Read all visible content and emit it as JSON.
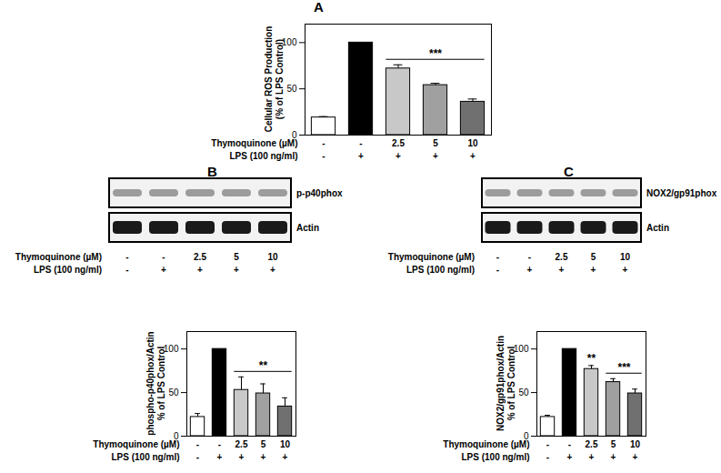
{
  "chart_data": [
    {
      "type": "bar",
      "panel": "A",
      "ylabel": "Cellular ROS Production\n(% of LPS Control)",
      "categories": [
        null,
        null,
        null,
        null,
        null
      ],
      "values": [
        19,
        100,
        72,
        54,
        36
      ],
      "errors": [
        1,
        0,
        4,
        2,
        3
      ],
      "colors": [
        "#ffffff",
        "#000000",
        "#c8c8c8",
        "#a0a0a0",
        "#707070"
      ],
      "ylim": [
        0,
        120
      ],
      "yticks": [
        0,
        50,
        100
      ],
      "tick_labels": "y",
      "treatments": [
        {
          "label": "Thymoquinone (µM)",
          "values": [
            "-",
            "-",
            "2.5",
            "5",
            "10"
          ]
        },
        {
          "label": "LPS (100 ng/ml)",
          "values": [
            "-",
            "+",
            "+",
            "+",
            "+"
          ]
        }
      ],
      "annotations": [
        {
          "text": "***",
          "from": 2,
          "to": 4
        }
      ]
    },
    {
      "type": "bar",
      "panel": "B",
      "blot": {
        "bands": [
          "p-p40phox",
          "Actin"
        ]
      },
      "ylabel": "phospho-p40phox/Actin\n% of LPS Control",
      "categories": [
        null,
        null,
        null,
        null,
        null
      ],
      "values": [
        22,
        100,
        53,
        49,
        34
      ],
      "errors": [
        4,
        0,
        15,
        11,
        10
      ],
      "colors": [
        "#ffffff",
        "#000000",
        "#c8c8c8",
        "#a0a0a0",
        "#707070"
      ],
      "ylim": [
        0,
        120
      ],
      "yticks": [
        0,
        50,
        100
      ],
      "tick_labels": "y",
      "treatments": [
        {
          "label": "Thymoquinone (µM)",
          "values": [
            "-",
            "-",
            "2.5",
            "5",
            "10"
          ]
        },
        {
          "label": "LPS (100 ng/ml)",
          "values": [
            "-",
            "+",
            "+",
            "+",
            "+"
          ]
        }
      ],
      "annotations": [
        {
          "text": "**",
          "from": 2,
          "to": 4
        }
      ]
    },
    {
      "type": "bar",
      "panel": "C",
      "blot": {
        "bands": [
          "NOX2/gp91phox",
          "Actin"
        ]
      },
      "ylabel": "NOX2/gp91phox/Actin\n% of LPS Control",
      "categories": [
        null,
        null,
        null,
        null,
        null
      ],
      "values": [
        22,
        100,
        77,
        62,
        49
      ],
      "errors": [
        2,
        0,
        4,
        4,
        5
      ],
      "colors": [
        "#ffffff",
        "#000000",
        "#c8c8c8",
        "#a0a0a0",
        "#707070"
      ],
      "ylim": [
        0,
        120
      ],
      "yticks": [
        0,
        50,
        100
      ],
      "tick_labels": "y",
      "treatments": [
        {
          "label": "Thymoquinone (µM)",
          "values": [
            "-",
            "-",
            "2.5",
            "5",
            "10"
          ]
        },
        {
          "label": "LPS (100 ng/ml)",
          "values": [
            "-",
            "+",
            "+",
            "+",
            "+"
          ]
        }
      ],
      "annotations": [
        {
          "text": "**",
          "from": 2,
          "to": 2
        },
        {
          "text": "***",
          "from": 3,
          "to": 4
        }
      ]
    }
  ]
}
